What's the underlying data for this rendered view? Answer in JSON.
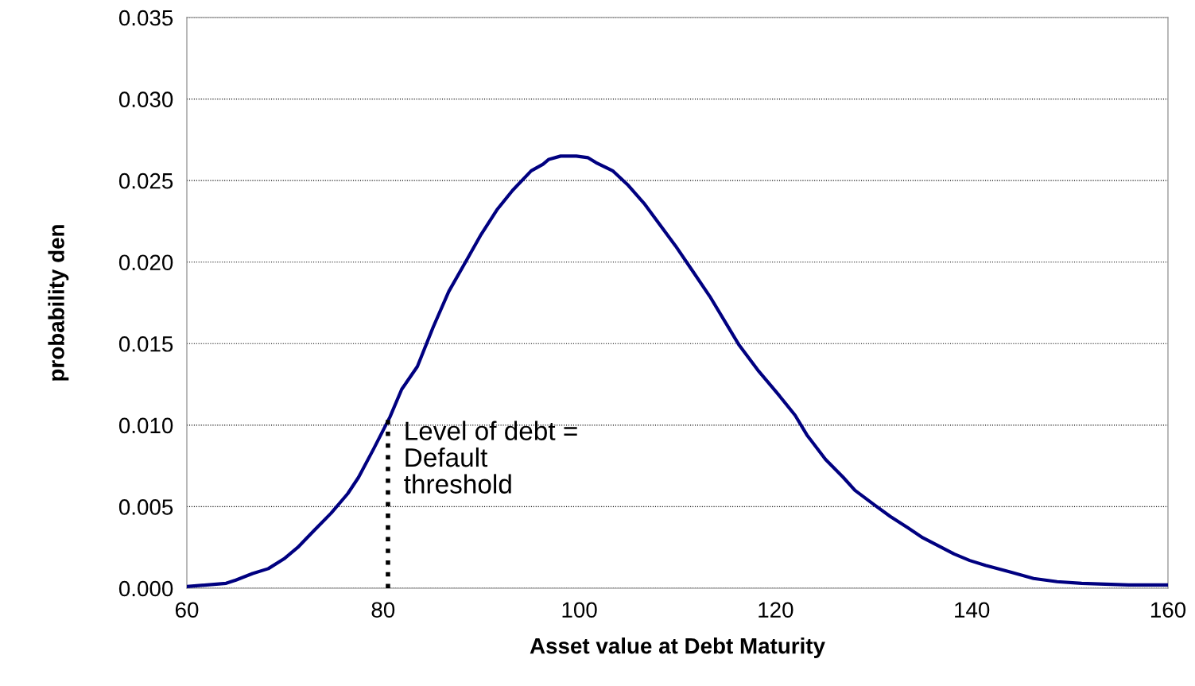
{
  "chart_data": {
    "type": "line",
    "xlabel": "Asset value at Debt Maturity",
    "ylabel": "probability den",
    "xlim": [
      60,
      160
    ],
    "xticks": [
      60,
      80,
      100,
      120,
      140,
      160
    ],
    "ylim": [
      0,
      0.035
    ],
    "yticks": [
      {
        "value": 0,
        "label": "0.000"
      },
      {
        "value": 0.005,
        "label": "0.005"
      },
      {
        "value": 0.01,
        "label": "0.010"
      },
      {
        "value": 0.015,
        "label": "0.015"
      },
      {
        "value": 0.02,
        "label": "0.020"
      },
      {
        "value": 0.025,
        "label": "0.025"
      },
      {
        "value": 0.03,
        "label": "0.030"
      },
      {
        "value": 0.035,
        "label": "0.035"
      }
    ],
    "grid": "y",
    "marker": "none",
    "series": [
      {
        "color": "#000080",
        "line_style": "solid",
        "x": [
          60,
          64,
          65,
          66.7,
          68.3,
          69.9,
          71.3,
          72.9,
          74.7,
          76.4,
          77.5,
          79,
          80.7,
          81.9,
          83.5,
          85.1,
          86.7,
          88.4,
          90,
          91.6,
          93.2,
          95.1,
          96.3,
          96.9,
          98.1,
          99.7,
          100.9,
          101.7,
          103.4,
          105,
          106.6,
          108.2,
          109.8,
          111.5,
          113.3,
          114.9,
          116.3,
          118.3,
          120.4,
          122,
          123.2,
          125.1,
          126.9,
          128.1,
          130.1,
          131.7,
          133.5,
          135,
          136.6,
          138.2,
          139.8,
          141.4,
          143.9,
          146.3,
          148.7,
          151.2,
          156,
          160
        ],
        "values": [
          0.0001,
          0.0003,
          0.0005,
          0.0009,
          0.0012,
          0.0018,
          0.0025,
          0.0035,
          0.0046,
          0.0058,
          0.0068,
          0.0085,
          0.0105,
          0.0122,
          0.0136,
          0.016,
          0.0182,
          0.02,
          0.0217,
          0.0232,
          0.0244,
          0.0256,
          0.026,
          0.0263,
          0.0265,
          0.0265,
          0.0264,
          0.0261,
          0.0256,
          0.0247,
          0.0236,
          0.0223,
          0.021,
          0.0195,
          0.0179,
          0.0163,
          0.0149,
          0.0133,
          0.0118,
          0.0106,
          0.0094,
          0.0079,
          0.0068,
          0.006,
          0.0051,
          0.0044,
          0.0037,
          0.0031,
          0.0026,
          0.0021,
          0.0017,
          0.0014,
          0.001,
          0.0006,
          0.0004,
          0.0003,
          0.0002,
          0.0002
        ]
      },
      {
        "color": "#000000",
        "line_style": "dotted",
        "x": [
          80.5,
          80.5
        ],
        "values": [
          0,
          0.0105
        ]
      }
    ],
    "annotations": [
      "Level of debt =\nDefault\nthreshold"
    ]
  }
}
